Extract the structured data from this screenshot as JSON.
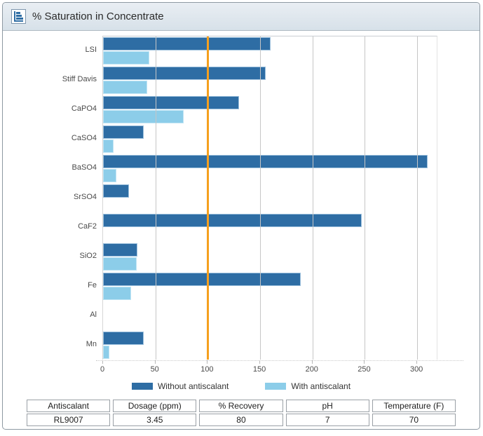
{
  "header": {
    "title": "% Saturation in Concentrate",
    "icon": "horizontal-bar-chart-icon"
  },
  "colors": {
    "bar_dark": "#2e6da4",
    "bar_dark_border": "#9cc0dd",
    "bar_light": "#8ccde9",
    "bar_light_border": "#bfe4f4",
    "reference_orange": "#f5a01e",
    "grid": "#c6c6c6",
    "header_bg": "#dde6ee"
  },
  "chart_data": {
    "type": "bar",
    "orientation": "horizontal",
    "title": "% Saturation in Concentrate",
    "categories": [
      "LSI",
      "Stiff Davis",
      "CaPO4",
      "CaSO4",
      "BaSO4",
      "SrSO4",
      "CaF2",
      "SiO2",
      "Fe",
      "Al",
      "Mn"
    ],
    "series": [
      {
        "name": "Without antiscalant",
        "color": "#2e6da4",
        "border": "#9cc0dd",
        "values": [
          160,
          155,
          130,
          39,
          310,
          25,
          247,
          33,
          189,
          0,
          39
        ]
      },
      {
        "name": "With antiscalant",
        "color": "#8ccde9",
        "border": "#bfe4f4",
        "values": [
          44,
          42,
          77,
          10,
          13,
          0,
          0,
          32,
          27,
          0,
          6
        ]
      }
    ],
    "xlabel": "",
    "ylabel": "",
    "xlim": [
      0,
      320
    ],
    "xticks": [
      0,
      50,
      100,
      150,
      200,
      250,
      300
    ],
    "grid": true,
    "reference_line": {
      "value": 100,
      "color": "#f5a01e"
    },
    "legend_position": "bottom"
  },
  "table": {
    "headers": [
      "Antiscalant",
      "Dosage (ppm)",
      "% Recovery",
      "pH",
      "Temperature (F)"
    ],
    "values": [
      "RL9007",
      "3.45",
      "80",
      "7",
      "70"
    ]
  }
}
